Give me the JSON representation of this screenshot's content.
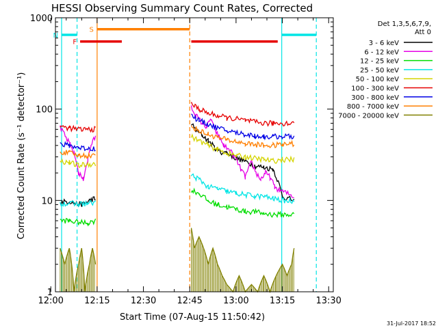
{
  "chart_data": {
    "type": "line",
    "title": "HESSI Observing Summary Count Rates, Corrected",
    "xlabel": "Start Time (07-Aug-15 11:50:42)",
    "ylabel": "Corrected Count Rate (s⁻¹ detector⁻¹)",
    "yscale": "log",
    "ylim": [
      1,
      1000
    ],
    "xlim_minutes": [
      11.5,
      101.5
    ],
    "x_unit": "minutes after 11:50",
    "x_ticks": [
      {
        "m": 10,
        "label": "12:00"
      },
      {
        "m": 25,
        "label": "12:15"
      },
      {
        "m": 40,
        "label": "12:30"
      },
      {
        "m": 55,
        "label": "12:45"
      },
      {
        "m": 70,
        "label": "13:00"
      },
      {
        "m": 85,
        "label": "13:15"
      },
      {
        "m": 100,
        "label": "13:30"
      }
    ],
    "y_ticks": [
      {
        "v": 1,
        "label": "1"
      },
      {
        "v": 10,
        "label": "10"
      },
      {
        "v": 100,
        "label": "100"
      },
      {
        "v": 1000,
        "label": "1000"
      }
    ],
    "legend_header": [
      "Det 1,3,5,6,7,9,",
      "Att 0"
    ],
    "legend_position": "right",
    "timestamp": "31-Jul-2017 18:52",
    "flags": [
      {
        "label": "F",
        "color": "#e60000",
        "level": 550,
        "segments": [
          [
            19.5,
            33.0
          ],
          [
            55.5,
            83.5
          ]
        ]
      },
      {
        "label": "N",
        "color": "#00e5e5",
        "level": 650,
        "segments": [
          [
            13.5,
            18.5
          ],
          [
            84.8,
            96.0
          ]
        ]
      },
      {
        "label": "S",
        "color": "#ff7f00",
        "level": 750,
        "segments": [
          [
            25.0,
            55.0
          ]
        ]
      }
    ],
    "vlines": [
      {
        "m": 13.5,
        "color": "#00e5e5",
        "dashed": false
      },
      {
        "m": 18.5,
        "color": "#00e5e5",
        "dashed": true
      },
      {
        "m": 25.0,
        "color": "#ff7f00",
        "dashed": false
      },
      {
        "m": 55.0,
        "color": "#ff7f00",
        "dashed": true
      },
      {
        "m": 84.8,
        "color": "#00e5e5",
        "dashed": false
      },
      {
        "m": 96.0,
        "color": "#00e5e5",
        "dashed": true
      }
    ],
    "intervals_minutes": [
      [
        13.0,
        24.5
      ],
      [
        55.5,
        88.8
      ]
    ],
    "series": [
      {
        "name": "3 - 6 keV",
        "color": "#000000",
        "points": [
          [
            13.0,
            9.5
          ],
          [
            16.0,
            9.8
          ],
          [
            19.0,
            9.0
          ],
          [
            21.0,
            9.2
          ],
          [
            22.5,
            10.0
          ],
          [
            24.0,
            10.5
          ],
          [
            24.5,
            10.0
          ],
          [
            55.5,
            70
          ],
          [
            57.0,
            58
          ],
          [
            59.0,
            52
          ],
          [
            61.0,
            45
          ],
          [
            63.0,
            38
          ],
          [
            65.0,
            34
          ],
          [
            67.0,
            33
          ],
          [
            70.0,
            29
          ],
          [
            73.0,
            27
          ],
          [
            76.0,
            24
          ],
          [
            79.0,
            23
          ],
          [
            82.0,
            22
          ],
          [
            85.0,
            11
          ],
          [
            88.8,
            10
          ]
        ]
      },
      {
        "name": "6 - 12 keV",
        "color": "#e600e6",
        "points": [
          [
            13.0,
            62
          ],
          [
            15.0,
            48
          ],
          [
            17.5,
            33
          ],
          [
            19.0,
            20
          ],
          [
            20.5,
            17
          ],
          [
            22.0,
            28
          ],
          [
            23.0,
            40
          ],
          [
            24.5,
            50
          ],
          [
            55.5,
            105
          ],
          [
            57.0,
            85
          ],
          [
            59.0,
            70
          ],
          [
            60.5,
            64
          ],
          [
            62.0,
            78
          ],
          [
            63.0,
            60
          ],
          [
            64.5,
            50
          ],
          [
            66.0,
            40
          ],
          [
            68.0,
            35
          ],
          [
            70.0,
            28
          ],
          [
            71.5,
            22
          ],
          [
            73.0,
            18
          ],
          [
            75.0,
            26
          ],
          [
            76.5,
            20
          ],
          [
            78.0,
            17
          ],
          [
            79.5,
            20
          ],
          [
            81.0,
            18
          ],
          [
            82.5,
            14
          ],
          [
            84.0,
            13
          ],
          [
            88.8,
            11
          ]
        ]
      },
      {
        "name": "12 - 25 keV",
        "color": "#00dd00",
        "points": [
          [
            13.0,
            6.0
          ],
          [
            16.0,
            6.0
          ],
          [
            19.0,
            5.7
          ],
          [
            22.0,
            5.7
          ],
          [
            24.5,
            6.0
          ],
          [
            55.5,
            13
          ],
          [
            58.0,
            12
          ],
          [
            61.0,
            9.8
          ],
          [
            64.0,
            9.0
          ],
          [
            67.0,
            8.5
          ],
          [
            70.0,
            8.0
          ],
          [
            73.0,
            7.6
          ],
          [
            76.0,
            7.5
          ],
          [
            79.0,
            7.2
          ],
          [
            82.0,
            7.0
          ],
          [
            85.0,
            7.0
          ],
          [
            88.8,
            7.0
          ]
        ]
      },
      {
        "name": "25 - 50 keV",
        "color": "#00e5e5",
        "points": [
          [
            13.0,
            9.3
          ],
          [
            16.0,
            9.3
          ],
          [
            19.0,
            9.1
          ],
          [
            22.0,
            9.3
          ],
          [
            24.5,
            9.5
          ],
          [
            55.5,
            19
          ],
          [
            58.0,
            17
          ],
          [
            61.0,
            14
          ],
          [
            64.0,
            13.5
          ],
          [
            67.0,
            12.5
          ],
          [
            70.0,
            12.0
          ],
          [
            73.0,
            11.5
          ],
          [
            76.0,
            11.2
          ],
          [
            79.0,
            11.0
          ],
          [
            82.0,
            10.5
          ],
          [
            85.0,
            10.0
          ],
          [
            88.8,
            9.8
          ]
        ]
      },
      {
        "name": "50 - 100 keV",
        "color": "#d4d400",
        "points": [
          [
            13.0,
            27
          ],
          [
            16.0,
            26
          ],
          [
            19.0,
            24
          ],
          [
            22.0,
            25
          ],
          [
            24.5,
            25
          ],
          [
            55.5,
            50
          ],
          [
            58.0,
            45
          ],
          [
            61.0,
            40
          ],
          [
            64.0,
            36
          ],
          [
            67.0,
            33
          ],
          [
            70.0,
            31
          ],
          [
            73.0,
            30
          ],
          [
            76.0,
            29
          ],
          [
            79.0,
            28
          ],
          [
            82.0,
            27
          ],
          [
            85.0,
            28
          ],
          [
            88.8,
            28
          ]
        ]
      },
      {
        "name": "100 - 300 keV",
        "color": "#e60000",
        "points": [
          [
            13.0,
            64
          ],
          [
            16.0,
            62
          ],
          [
            19.0,
            60
          ],
          [
            22.0,
            60
          ],
          [
            24.5,
            60
          ],
          [
            55.5,
            115
          ],
          [
            58.0,
            100
          ],
          [
            61.0,
            90
          ],
          [
            64.0,
            85
          ],
          [
            67.0,
            80
          ],
          [
            70.0,
            78
          ],
          [
            73.0,
            75
          ],
          [
            76.0,
            72
          ],
          [
            79.0,
            70
          ],
          [
            82.0,
            70
          ],
          [
            85.0,
            70
          ],
          [
            88.8,
            70
          ]
        ]
      },
      {
        "name": "300 - 800 keV",
        "color": "#0000e6",
        "points": [
          [
            13.0,
            41
          ],
          [
            16.0,
            40
          ],
          [
            19.0,
            38
          ],
          [
            22.0,
            37
          ],
          [
            24.5,
            37
          ],
          [
            55.5,
            85
          ],
          [
            58.0,
            75
          ],
          [
            61.0,
            68
          ],
          [
            64.0,
            62
          ],
          [
            67.0,
            58
          ],
          [
            70.0,
            55
          ],
          [
            73.0,
            53
          ],
          [
            76.0,
            51
          ],
          [
            79.0,
            50
          ],
          [
            82.0,
            50
          ],
          [
            85.0,
            50
          ],
          [
            88.8,
            50
          ]
        ]
      },
      {
        "name": "800 - 7000 keV",
        "color": "#ff7f00",
        "points": [
          [
            13.0,
            34
          ],
          [
            16.0,
            33
          ],
          [
            19.0,
            31
          ],
          [
            22.0,
            31
          ],
          [
            24.5,
            31
          ],
          [
            55.5,
            65
          ],
          [
            58.0,
            58
          ],
          [
            61.0,
            53
          ],
          [
            64.0,
            49
          ],
          [
            67.0,
            46
          ],
          [
            70.0,
            44
          ],
          [
            73.0,
            42
          ],
          [
            76.0,
            41
          ],
          [
            79.0,
            40
          ],
          [
            82.0,
            40
          ],
          [
            85.0,
            41
          ],
          [
            88.8,
            42
          ]
        ]
      },
      {
        "name": "7000 - 20000 keV",
        "color": "#808000",
        "points": [
          [
            13.0,
            3.0
          ],
          [
            14.5,
            2.0
          ],
          [
            16.0,
            3.0
          ],
          [
            17.5,
            1.0
          ],
          [
            19.0,
            2.0
          ],
          [
            20.0,
            3.0
          ],
          [
            21.0,
            1.0
          ],
          [
            22.5,
            2.0
          ],
          [
            23.5,
            3.0
          ],
          [
            24.5,
            2.0
          ],
          [
            55.5,
            5.0
          ],
          [
            56.5,
            3.0
          ],
          [
            58.0,
            4.0
          ],
          [
            59.5,
            3.0
          ],
          [
            61.0,
            2.0
          ],
          [
            62.5,
            3.0
          ],
          [
            64.0,
            2.0
          ],
          [
            65.5,
            1.5
          ],
          [
            67.0,
            1.2
          ],
          [
            69.0,
            1.0
          ],
          [
            71.0,
            1.5
          ],
          [
            73.0,
            1.0
          ],
          [
            75.0,
            1.2
          ],
          [
            77.0,
            1.0
          ],
          [
            79.0,
            1.5
          ],
          [
            81.0,
            1.0
          ],
          [
            83.0,
            1.5
          ],
          [
            85.0,
            2.0
          ],
          [
            86.5,
            1.5
          ],
          [
            88.0,
            2.0
          ],
          [
            88.8,
            3.0
          ]
        ]
      }
    ]
  }
}
